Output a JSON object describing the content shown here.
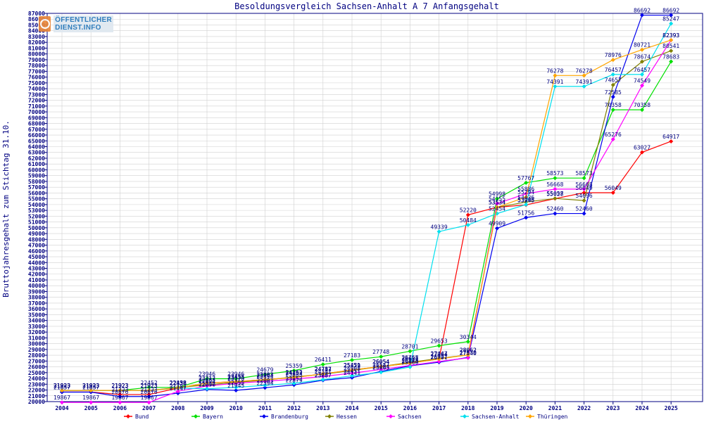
{
  "logo": {
    "line1": "ÖFFENTLICHER",
    "line2": "DIENST.INFO"
  },
  "chart_data": {
    "type": "line",
    "title": "Besoldungsvergleich Sachsen-Anhalt A 7 Anfangsgehalt",
    "xlabel": "",
    "ylabel": "Bruttojahresgehalt zum Stichtag 31.10.",
    "categories": [
      "2004",
      "2005",
      "2006",
      "2007",
      "2008",
      "2009",
      "2010",
      "2011",
      "2012",
      "2013",
      "2014",
      "2015",
      "2016",
      "2017",
      "2018",
      "2019",
      "2020",
      "2021",
      "2022",
      "2023",
      "2024",
      "2025"
    ],
    "ylim": [
      20000,
      87000
    ],
    "ytick_step": 1000,
    "grid": true,
    "legend_position": "bottom",
    "series": [
      {
        "name": "Bund",
        "color": "#ff0000",
        "values": [
          21657,
          21657,
          21223,
          21223,
          22338,
          23212,
          23455,
          23803,
          24152,
          24787,
          25451,
          26054,
          26631,
          27364,
          52220,
          53534,
          53945,
          55028,
          56049,
          56049,
          63027,
          64917
        ]
      },
      {
        "name": "Bayern",
        "color": "#00e000",
        "values": [
          21923,
          21923,
          21923,
          22452,
          22452,
          23946,
          23946,
          24679,
          25359,
          26411,
          27183,
          27748,
          28701,
          29653,
          30344,
          54998,
          57767,
          58573,
          58573,
          70358,
          70358,
          78683
        ]
      },
      {
        "name": "Brandenburg",
        "color": "#0000ee",
        "values": [
          21637,
          21637,
          20876,
          20876,
          21447,
          22096,
          21945,
          22394,
          22879,
          23687,
          24141,
          25204,
          26178,
          26791,
          27630,
          49909,
          51756,
          52460,
          52460,
          72585,
          86692,
          86692
        ]
      },
      {
        "name": "Hessen",
        "color": "#808000",
        "values": [
          21923,
          21923,
          21923,
          21923,
          22438,
          22883,
          23334,
          23704,
          24262,
          24713,
          25379,
          26054,
          26768,
          27447,
          28062,
          53534,
          54436,
          55057,
          54696,
          74657,
          78674,
          80541
        ]
      },
      {
        "name": "Sachsen",
        "color": "#ff00ff",
        "values": [
          19867,
          19867,
          19867,
          19867,
          21787,
          22694,
          23170,
          23494,
          23883,
          24341,
          24908,
          25547,
          26245,
          26927,
          27540,
          54155,
          55886,
          56668,
          56668,
          65276,
          74549,
          82393
        ]
      },
      {
        "name": "Sachsen-Anhalt",
        "color": "#00e0ee",
        "values": [
          21923,
          21923,
          21923,
          21923,
          22338,
          22212,
          22455,
          22803,
          23152,
          23787,
          24451,
          25063,
          25960,
          49339,
          50484,
          52454,
          53996,
          74391,
          74391,
          76457,
          76457,
          85247
        ]
      },
      {
        "name": "Thüringen",
        "color": "#ffa500",
        "values": [
          21923,
          21923,
          21923,
          21923,
          22338,
          23212,
          23455,
          23803,
          24152,
          24787,
          25451,
          26054,
          26631,
          27364,
          28062,
          53534,
          55294,
          76278,
          76278,
          78976,
          80721,
          82393
        ]
      }
    ]
  }
}
